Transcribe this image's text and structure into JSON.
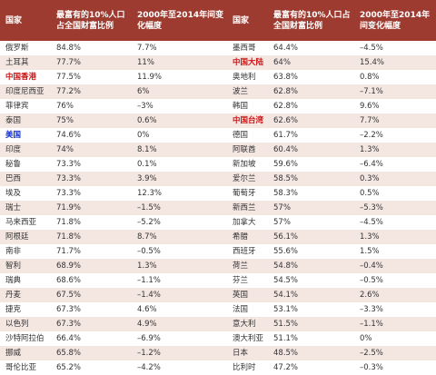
{
  "table": {
    "header": [
      "国家",
      "最富有的10%人口占全国财富比例",
      "2000年至2014年间变化幅度",
      "国家",
      "最富有的10%人口占全国财富比例",
      "2000年至2014年间变化幅度"
    ],
    "header_color": "#9e3b30",
    "stripe_color": "#f4e7e2",
    "rows": [
      [
        "俄罗斯",
        "84.8%",
        "7.7%",
        "墨西哥",
        "64.4%",
        "–4.5%"
      ],
      [
        "土耳其",
        "77.7%",
        "11%",
        "中国大陆",
        "64%",
        "15.4%"
      ],
      [
        "中国香港",
        "77.5%",
        "11.9%",
        "奥地利",
        "63.8%",
        "0.8%"
      ],
      [
        "印度尼西亚",
        "77.2%",
        "6%",
        "波兰",
        "62.8%",
        "–7.1%"
      ],
      [
        "菲律宾",
        "76%",
        "–3%",
        "韩国",
        "62.8%",
        "9.6%"
      ],
      [
        "泰国",
        "75%",
        "0.6%",
        "中国台湾",
        "62.6%",
        "7.7%"
      ],
      [
        "美国",
        "74.6%",
        "0%",
        "德国",
        "61.7%",
        "–2.2%"
      ],
      [
        "印度",
        "74%",
        "8.1%",
        "阿联酋",
        "60.4%",
        "1.3%"
      ],
      [
        "秘鲁",
        "73.3%",
        "0.1%",
        "新加坡",
        "59.6%",
        "–6.4%"
      ],
      [
        "巴西",
        "73.3%",
        "3.9%",
        "爱尔兰",
        "58.5%",
        "0.3%"
      ],
      [
        "埃及",
        "73.3%",
        "12.3%",
        "葡萄牙",
        "58.3%",
        "0.5%"
      ],
      [
        "瑞士",
        "71.9%",
        "–1.5%",
        "新西兰",
        "57%",
        "–5.3%"
      ],
      [
        "马来西亚",
        "71.8%",
        "–5.2%",
        "加拿大",
        "57%",
        "–4.5%"
      ],
      [
        "阿根廷",
        "71.8%",
        "8.7%",
        "希腊",
        "56.1%",
        "1.3%"
      ],
      [
        "南非",
        "71.7%",
        "–0.5%",
        "西班牙",
        "55.6%",
        "1.5%"
      ],
      [
        "智利",
        "68.9%",
        "1.3%",
        "荷兰",
        "54.8%",
        "–0.4%"
      ],
      [
        "瑞典",
        "68.6%",
        "–1.1%",
        "芬兰",
        "54.5%",
        "–0.5%"
      ],
      [
        "丹麦",
        "67.5%",
        "–1.4%",
        "英国",
        "54.1%",
        "2.6%"
      ],
      [
        "捷克",
        "67.3%",
        "4.6%",
        "法国",
        "53.1%",
        "–3.3%"
      ],
      [
        "以色列",
        "67.3%",
        "4.9%",
        "意大利",
        "51.5%",
        "–1.1%"
      ],
      [
        "沙特阿拉伯",
        "66.4%",
        "–6.9%",
        "澳大利亚",
        "51.1%",
        "0%"
      ],
      [
        "挪威",
        "65.8%",
        "–1.2%",
        "日本",
        "48.5%",
        "–2.5%"
      ],
      [
        "哥伦比亚",
        "65.2%",
        "–4.2%",
        "比利时",
        "47.2%",
        "–0.3%"
      ]
    ],
    "name_colors": [
      [
        null,
        null
      ],
      [
        null,
        "#d01010"
      ],
      [
        "#d01010",
        null
      ],
      [
        null,
        null
      ],
      [
        null,
        null
      ],
      [
        null,
        "#d01010"
      ],
      [
        "#1030d0",
        null
      ],
      [
        null,
        null
      ],
      [
        null,
        null
      ],
      [
        null,
        null
      ],
      [
        null,
        null
      ],
      [
        null,
        null
      ],
      [
        null,
        null
      ],
      [
        null,
        null
      ],
      [
        null,
        null
      ],
      [
        null,
        null
      ],
      [
        null,
        null
      ],
      [
        null,
        null
      ],
      [
        null,
        null
      ],
      [
        null,
        null
      ],
      [
        null,
        null
      ],
      [
        null,
        null
      ],
      [
        null,
        null
      ]
    ]
  }
}
